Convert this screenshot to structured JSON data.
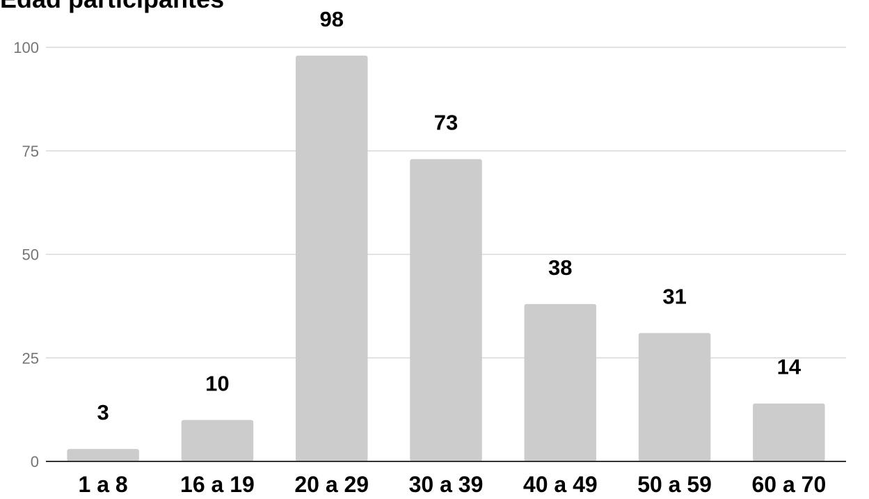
{
  "chart_data": {
    "type": "bar",
    "title": "Edad participantes",
    "categories": [
      "1 a 8",
      "16 a 19",
      "20 a 29",
      "30 a 39",
      "40 a 49",
      "50 a 59",
      "60 a 70"
    ],
    "values": [
      3,
      10,
      98,
      73,
      38,
      31,
      14
    ],
    "xlabel": "",
    "ylabel": "",
    "ylim": [
      0,
      100
    ],
    "yticks": [
      0,
      25,
      50,
      75,
      100
    ],
    "grid": true,
    "data_labels": true,
    "legend": "none"
  },
  "colors": {
    "bar": "#cccccc",
    "grid": "#d9d9d9",
    "axis": "#333333",
    "tick_text": "#757575",
    "label_text": "#000000"
  }
}
